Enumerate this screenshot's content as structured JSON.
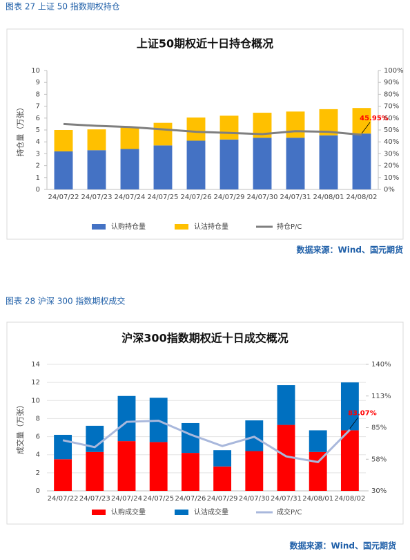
{
  "figures": [
    {
      "caption": "图表 27  上证 50 指数期权持仓",
      "source": "数据来源：Wind、国元期货"
    },
    {
      "caption": "图表 28  沪深 300 指数期权成交",
      "source": "数据来源：Wind、国元期货"
    }
  ],
  "chart_data": [
    {
      "type": "bar",
      "stacked": true,
      "title": "上证50期权近十日持仓概况",
      "y_label": "持仓量（万张）",
      "grid": false,
      "categories": [
        "24/07/22",
        "24/07/23",
        "24/07/24",
        "24/07/25",
        "24/07/26",
        "24/07/29",
        "24/07/30",
        "24/07/31",
        "24/08/01",
        "24/08/02"
      ],
      "ylim": [
        0,
        10
      ],
      "yticks": [
        0,
        1,
        2,
        3,
        4,
        5,
        6,
        7,
        8,
        9,
        10
      ],
      "y2lim": [
        0,
        100
      ],
      "y2ticks": [
        {
          "value": 0,
          "label": "0%"
        },
        {
          "value": 10,
          "label": "10%"
        },
        {
          "value": 20,
          "label": "20%"
        },
        {
          "value": 30,
          "label": "30%"
        },
        {
          "value": 40,
          "label": "40%"
        },
        {
          "value": 50,
          "label": "50%"
        },
        {
          "value": 60,
          "label": "60%"
        },
        {
          "value": 70,
          "label": "70%"
        },
        {
          "value": 80,
          "label": "80%"
        },
        {
          "value": 90,
          "label": "90%"
        },
        {
          "value": 100,
          "label": "100%"
        }
      ],
      "legend": "bottom",
      "series": [
        {
          "name": "认购持仓量",
          "color": "#4472c4",
          "values": [
            3.2,
            3.3,
            3.4,
            3.7,
            4.1,
            4.2,
            4.35,
            4.35,
            4.55,
            4.7
          ]
        },
        {
          "name": "认沽持仓量",
          "color": "#ffc000",
          "values": [
            1.8,
            1.75,
            1.85,
            1.9,
            1.95,
            2.0,
            2.1,
            2.2,
            2.2,
            2.15
          ]
        },
        {
          "name": "持仓P/C",
          "color": "#7f7f7f",
          "type": "line",
          "axis": "y2",
          "values": [
            55,
            53.5,
            52.5,
            50.5,
            48.5,
            47.5,
            46.5,
            49,
            48.5,
            45.95
          ],
          "value_labels": [
            null,
            null,
            null,
            null,
            null,
            null,
            null,
            null,
            null,
            "45.95%"
          ]
        }
      ]
    },
    {
      "type": "bar",
      "stacked": true,
      "title": "沪深300指数期权近十日成交概况",
      "y_label": "成交量（万张）",
      "grid": true,
      "categories": [
        "24/07/22",
        "24/07/23",
        "24/07/24",
        "24/07/25",
        "24/07/26",
        "24/07/29",
        "24/07/30",
        "24/07/31",
        "24/08/01",
        "24/08/02"
      ],
      "ylim": [
        0,
        14
      ],
      "yticks": [
        0,
        2,
        4,
        6,
        8,
        10,
        12,
        14
      ],
      "y2lim": [
        30,
        140
      ],
      "y2ticks": [
        {
          "value": 30,
          "label": "30%"
        },
        {
          "value": 57.5,
          "label": "58%"
        },
        {
          "value": 85,
          "label": "85%"
        },
        {
          "value": 112.5,
          "label": "113%"
        },
        {
          "value": 140,
          "label": "140%"
        }
      ],
      "legend": "bottom",
      "series": [
        {
          "name": "认购成交量",
          "color": "#ff0000",
          "values": [
            3.5,
            4.3,
            5.5,
            5.4,
            4.2,
            2.7,
            4.4,
            7.3,
            4.3,
            6.7
          ]
        },
        {
          "name": "认沽成交量",
          "color": "#0070c0",
          "values": [
            2.7,
            2.9,
            5.0,
            4.9,
            3.3,
            1.8,
            3.4,
            4.4,
            2.4,
            5.3
          ]
        },
        {
          "name": "成交P/C",
          "color": "#a9b8dc",
          "type": "line",
          "axis": "y2",
          "values": [
            74,
            68,
            90,
            91,
            79,
            69,
            77,
            60,
            55,
            83.07
          ],
          "value_labels": [
            null,
            null,
            null,
            null,
            null,
            null,
            null,
            null,
            null,
            "83.07%"
          ]
        }
      ]
    }
  ]
}
